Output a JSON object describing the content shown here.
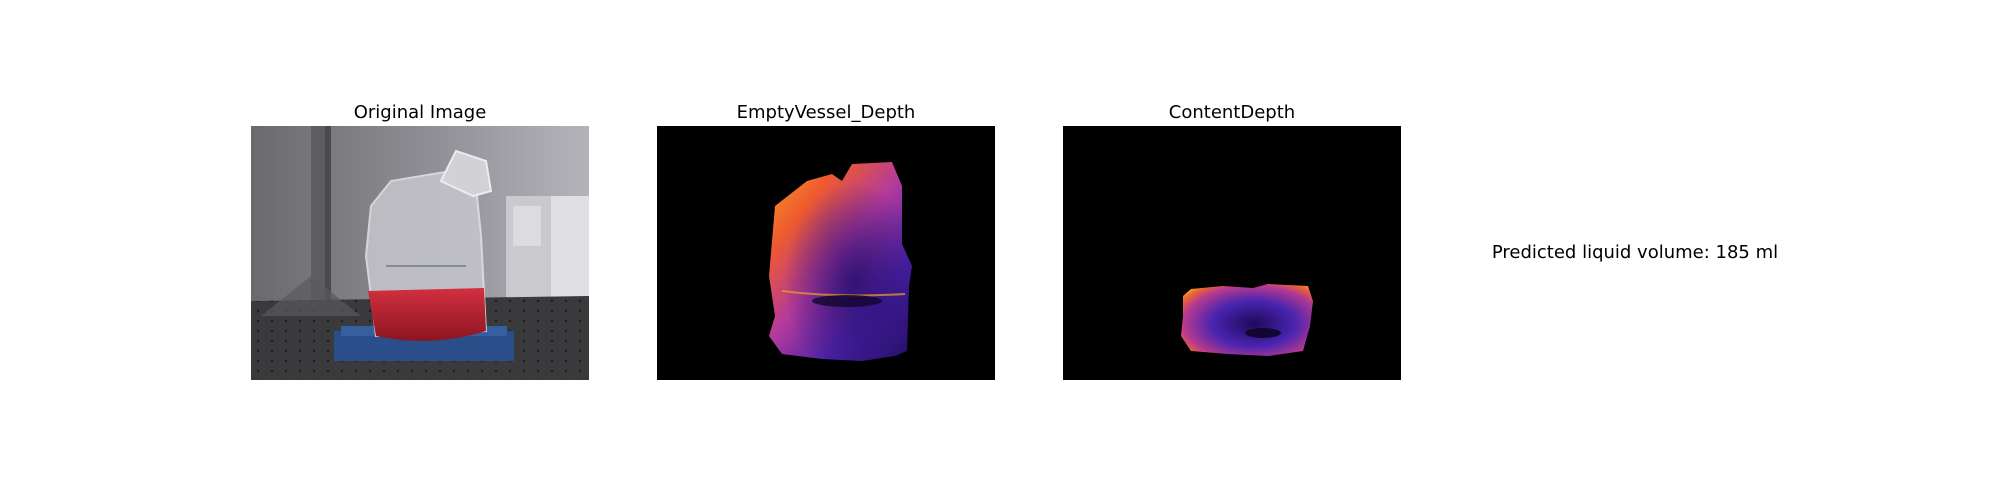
{
  "panels": [
    {
      "title": "Original Image",
      "content": "photo"
    },
    {
      "title": "EmptyVessel_Depth",
      "content": "depth-map"
    },
    {
      "title": "ContentDepth",
      "content": "depth-map"
    }
  ],
  "result": {
    "text": "Predicted liquid volume: 185 ml"
  },
  "colors": {
    "background": "#ffffff",
    "depth_background": "#000000",
    "colormap": [
      "#1a0a4e",
      "#3a1c9c",
      "#6a2fc4",
      "#c0359a",
      "#e8552f",
      "#f28f1c",
      "#f9d043"
    ],
    "liquid": "#c0202a"
  }
}
